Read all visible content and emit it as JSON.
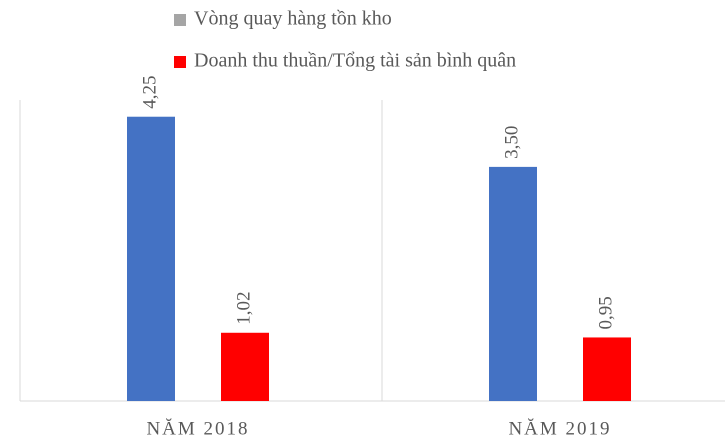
{
  "chart_data": {
    "type": "bar",
    "categories": [
      "NĂM 2018",
      "NĂM 2019"
    ],
    "series": [
      {
        "name": "Vòng quay hàng tồn kho",
        "color": "#4472c4",
        "legend_color": "#a5a5a5",
        "values": [
          4.25,
          3.5
        ],
        "value_labels": [
          "4,25",
          "3,50"
        ]
      },
      {
        "name": "Doanh thu thuần/Tổng tài sản bình quân",
        "color": "#ff0000",
        "legend_color": "#ff0000",
        "values": [
          1.02,
          0.95
        ],
        "value_labels": [
          "1,02",
          "0,95"
        ]
      }
    ],
    "ylim": [
      0,
      4.5
    ]
  }
}
